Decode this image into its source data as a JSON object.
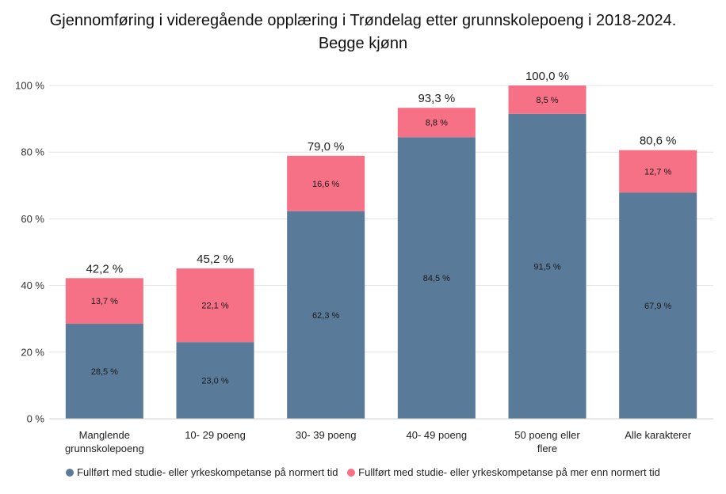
{
  "chart_data": {
    "type": "bar",
    "stacked": true,
    "title_line1": "Gjennomføring i videregående opplæring i Trøndelag etter grunnskolepoeng i 2018-2024.",
    "title_line2": "Begge kjønn",
    "categories": [
      [
        "Manglende",
        "grunnskolepoeng"
      ],
      [
        "10- 29 poeng"
      ],
      [
        "30- 39 poeng"
      ],
      [
        "40- 49 poeng"
      ],
      [
        "50 poeng eller",
        "flere"
      ],
      [
        "Alle karakterer"
      ]
    ],
    "series": [
      {
        "name": "Fullført med studie- eller yrkeskompetanse på normert tid",
        "color": "#5a7a99",
        "values": [
          28.5,
          23.0,
          62.3,
          84.5,
          91.5,
          67.9
        ],
        "labels": [
          "28,5 %",
          "23,0 %",
          "62,3 %",
          "84,5 %",
          "91,5 %",
          "67,9 %"
        ]
      },
      {
        "name": "Fullført med studie- eller yrkeskompetanse på mer enn normert tid",
        "color": "#f67086",
        "values": [
          13.7,
          22.1,
          16.6,
          8.8,
          8.5,
          12.7
        ],
        "labels": [
          "13,7 %",
          "22,1 %",
          "16,6 %",
          "8,8 %",
          "8,5 %",
          "12,7 %"
        ]
      }
    ],
    "totals": [
      "42,2 %",
      "45,2 %",
      "79,0 %",
      "93,3 %",
      "100,0 %",
      "80,6 %"
    ],
    "yticks": [
      0,
      20,
      40,
      60,
      80,
      100
    ],
    "ytick_labels": [
      "0 %",
      "20 %",
      "40 %",
      "60 %",
      "80 %",
      "100 %"
    ],
    "ylim": [
      0,
      100
    ],
    "grid": true,
    "legend_position": "bottom"
  }
}
